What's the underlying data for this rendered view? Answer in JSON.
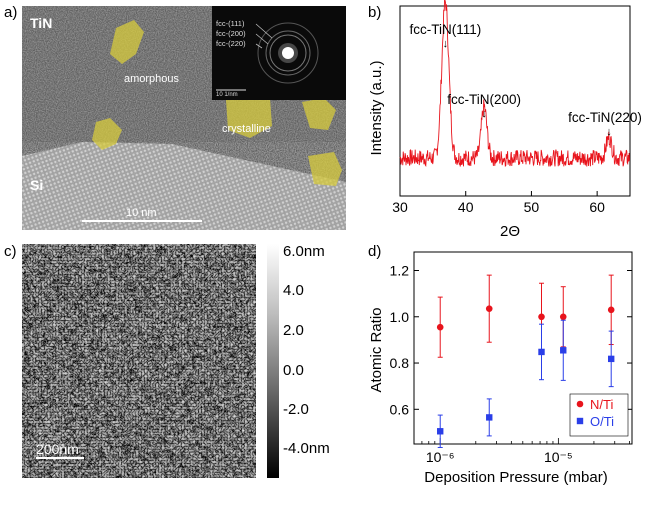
{
  "panel_labels": {
    "a": "a)",
    "b": "b)",
    "c": "c)",
    "d": "d)"
  },
  "tem_image": {
    "label_top": "TiN",
    "label_bottom": "Si",
    "region1": "amorphous",
    "region2": "crystalline",
    "scalebar": "10 nm",
    "saed_rings": [
      "fcc-(111)",
      "fcc-(200)",
      "fcc-(220)"
    ],
    "saed_scale": "10 1/nm"
  },
  "afm_image": {
    "scalebar": "200nm",
    "colorbar_ticks": [
      "6.0nm",
      "4.0",
      "2.0",
      "0.0",
      "-2.0",
      "-4.0nm"
    ]
  },
  "chart_data": [
    {
      "type": "line",
      "panel": "b",
      "title": "",
      "xlabel": "2Θ",
      "ylabel": "Intensity (a.u.)",
      "xlim": [
        30,
        65
      ],
      "xticks": [
        "30",
        "40",
        "50",
        "60"
      ],
      "peaks": [
        {
          "label": "fcc-TiN(111)",
          "x": 36.9,
          "rel_height": 0.92
        },
        {
          "label": "fcc-TiN(200)",
          "x": 42.8,
          "rel_height": 0.3
        },
        {
          "label": "fcc-TiN(220)",
          "x": 61.8,
          "rel_height": 0.12
        }
      ],
      "color": "#e8141c"
    },
    {
      "type": "scatter",
      "panel": "d",
      "xlabel": "Deposition Pressure (mbar)",
      "ylabel": "Atomic Ratio",
      "xscale": "log",
      "xticks": [
        "10⁻⁶",
        "10⁻⁵"
      ],
      "ylim": [
        0.45,
        1.28
      ],
      "yticks": [
        "0.6",
        "0.8",
        "1.0",
        "1.2"
      ],
      "legend_position": "bottom-right",
      "series": [
        {
          "name": "N/Ti",
          "color": "#e8141c",
          "marker": "circle",
          "x": [
            1e-06,
            2.6e-06,
            7.2e-06,
            1.1e-05,
            2.8e-05
          ],
          "y": [
            0.955,
            1.035,
            1.0,
            1.0,
            1.03
          ],
          "err": [
            0.13,
            0.145,
            0.145,
            0.13,
            0.15
          ]
        },
        {
          "name": "O/Ti",
          "color": "#2a3ee8",
          "marker": "square",
          "x": [
            1e-06,
            2.6e-06,
            7.2e-06,
            1.1e-05,
            2.8e-05
          ],
          "y": [
            0.505,
            0.565,
            0.848,
            0.855,
            0.818
          ],
          "err": [
            0.07,
            0.08,
            0.12,
            0.13,
            0.12
          ]
        }
      ]
    }
  ]
}
